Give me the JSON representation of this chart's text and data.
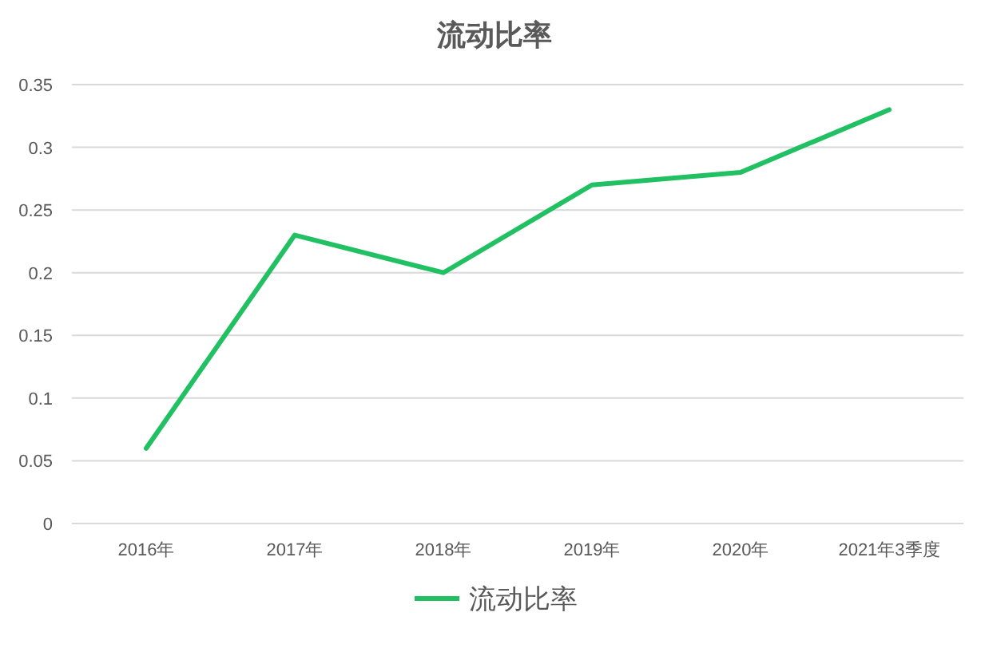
{
  "chart_data": {
    "type": "line",
    "title": "流动比率",
    "categories": [
      "2016年",
      "2017年",
      "2018年",
      "2019年",
      "2020年",
      "2021年3季度"
    ],
    "series": [
      {
        "name": "流动比率",
        "color": "#21c063",
        "values": [
          0.06,
          0.23,
          0.2,
          0.27,
          0.28,
          0.33
        ]
      }
    ],
    "ylim": [
      0,
      0.35
    ],
    "yticks": [
      0,
      0.05,
      0.1,
      0.15,
      0.2,
      0.25,
      0.3,
      0.35
    ],
    "grid": "y",
    "legend": "bottom",
    "marker": "none",
    "line_style": "solid"
  }
}
